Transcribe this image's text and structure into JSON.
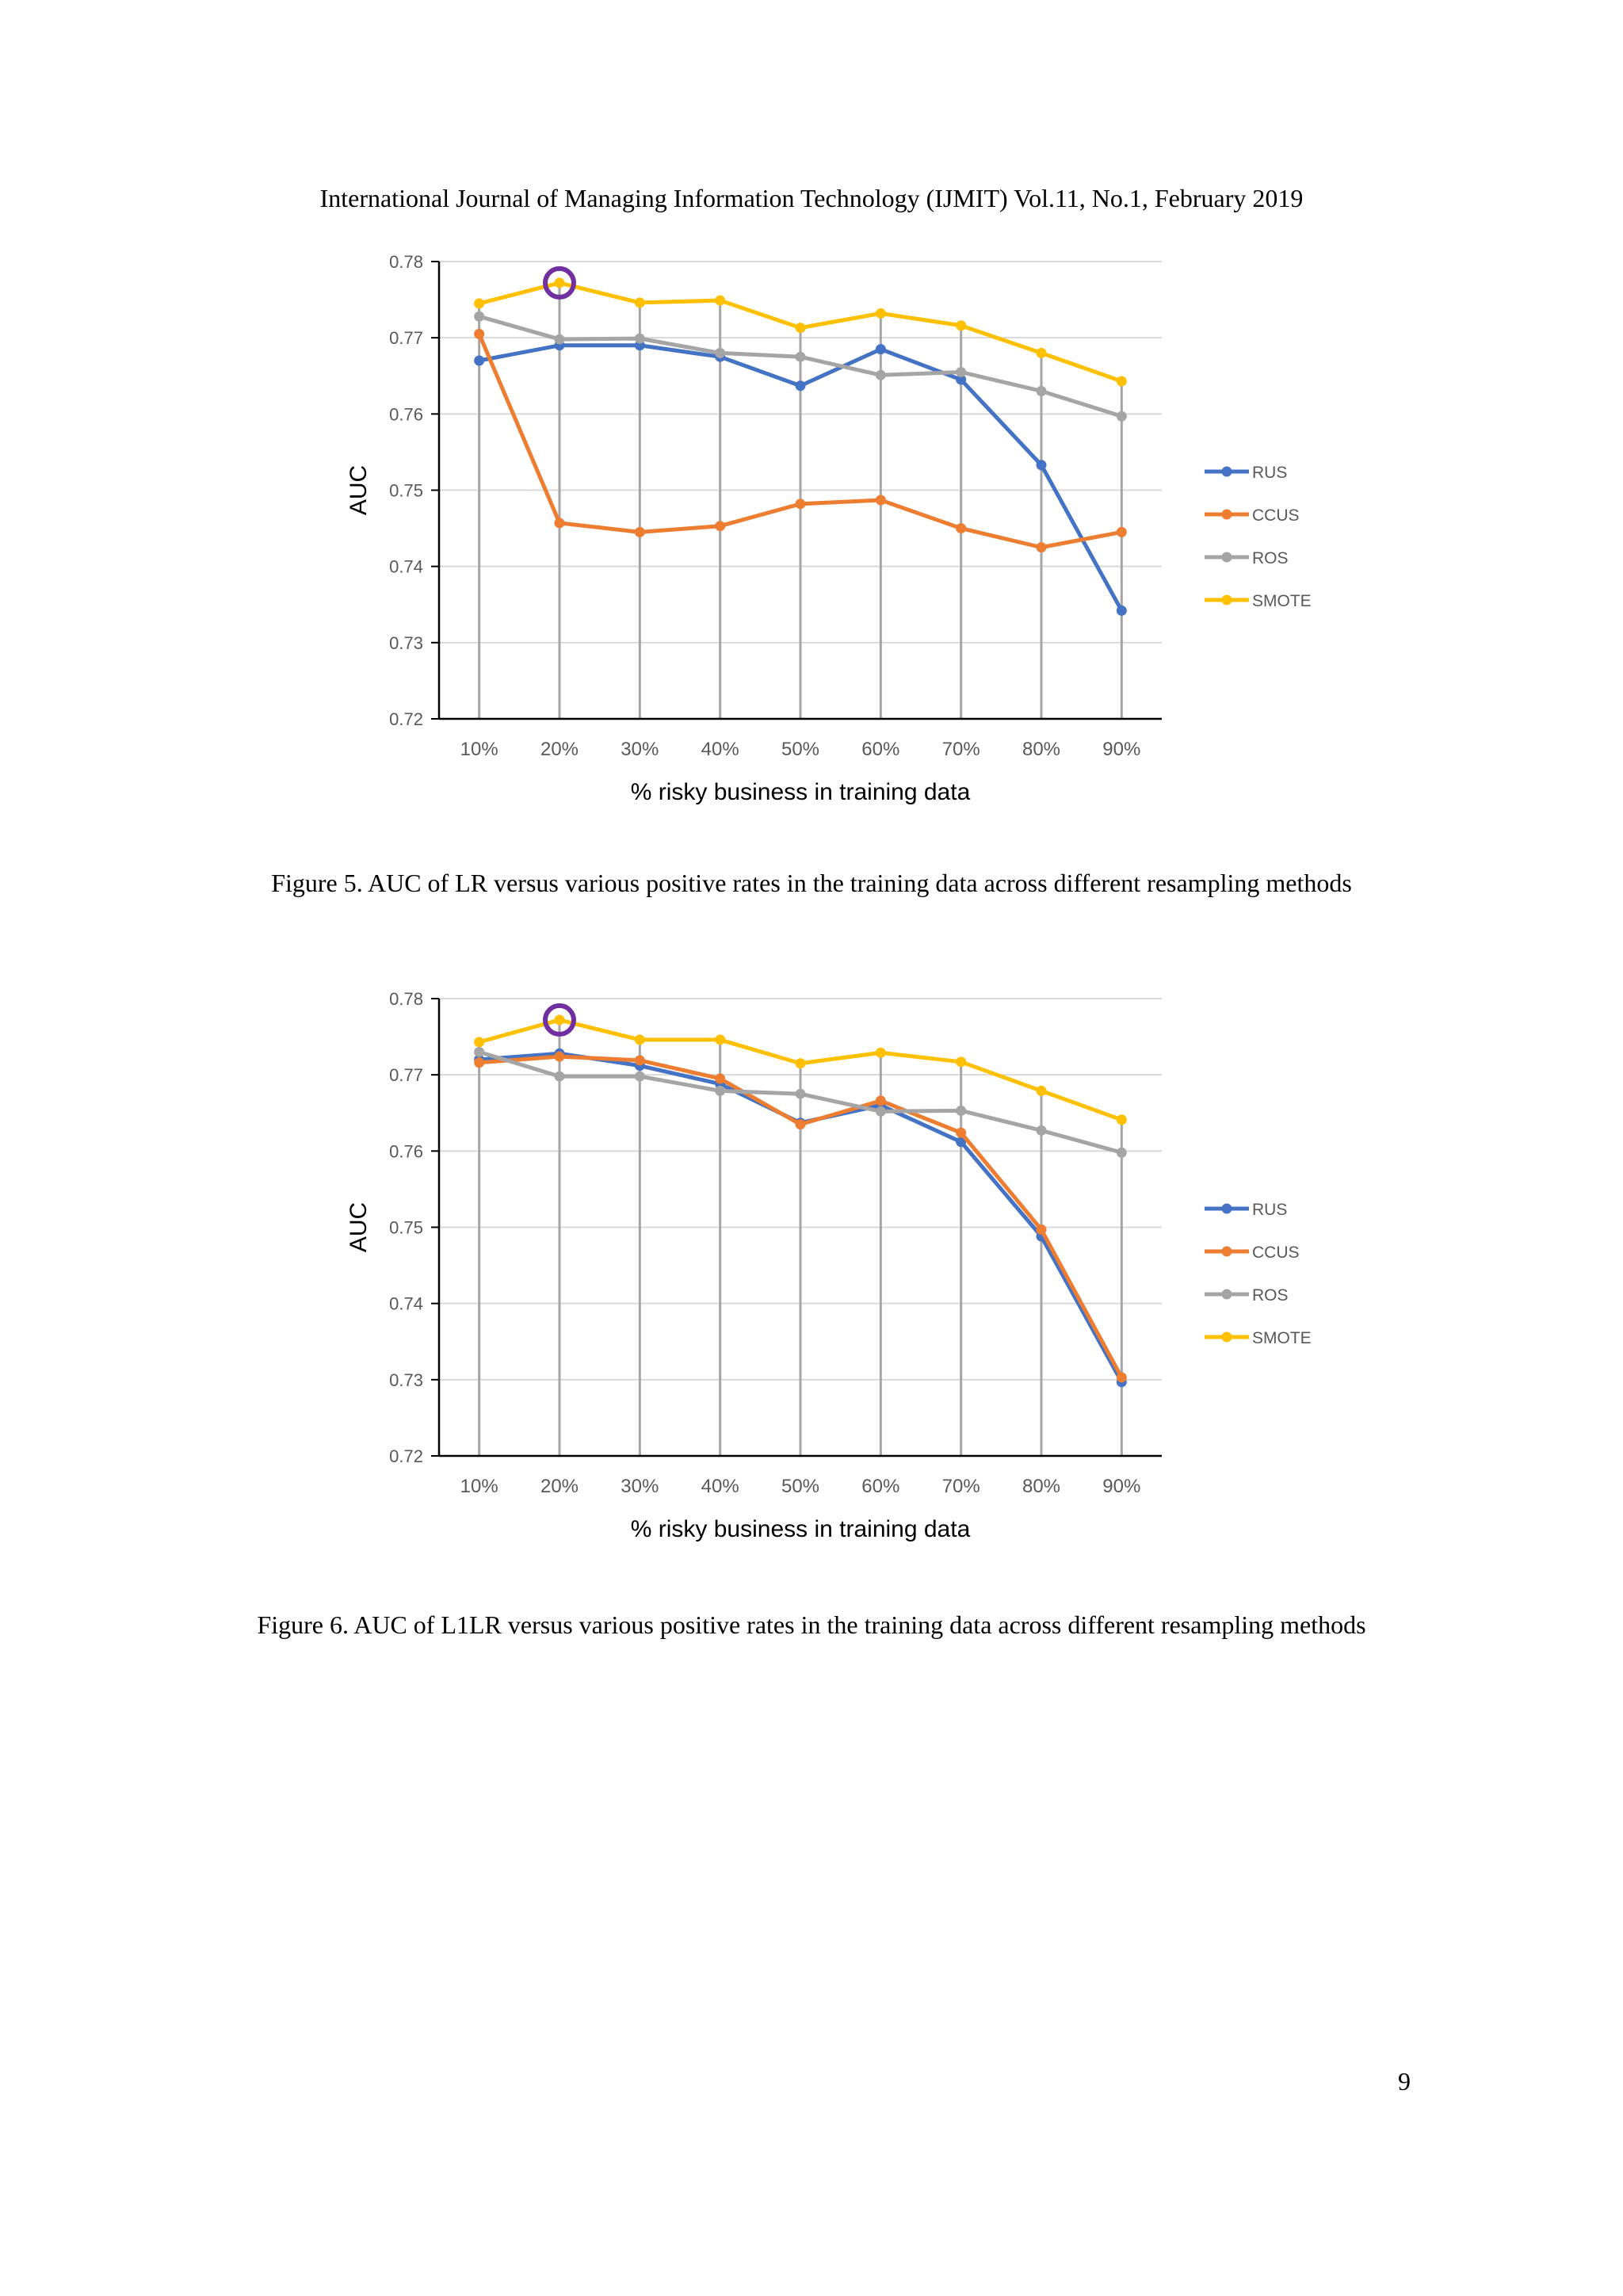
{
  "header": {
    "running_title": "International Journal of Managing Information Technology (IJMIT) Vol.11, No.1, February 2019"
  },
  "figures": [
    {
      "caption": "Figure 5.  AUC of LR versus various positive rates in the training data across different resampling methods"
    },
    {
      "caption": "Figure 6.  AUC of L1LR versus various positive rates in the training data across different resampling methods"
    }
  ],
  "footer": {
    "page_number": "9"
  },
  "chart_data": [
    {
      "type": "line",
      "title": "",
      "xlabel": "% risky business in training data",
      "ylabel": "AUC",
      "ylim": [
        0.72,
        0.78
      ],
      "yticks": [
        "0.72",
        "0.73",
        "0.74",
        "0.75",
        "0.76",
        "0.77",
        "0.78"
      ],
      "categories": [
        "10%",
        "20%",
        "30%",
        "40%",
        "50%",
        "60%",
        "70%",
        "80%",
        "90%"
      ],
      "grid": "horizontal",
      "legend": "right",
      "highlight": {
        "category_index": 1,
        "series": "SMOTE",
        "color": "#7030a0"
      },
      "series": [
        {
          "name": "RUS",
          "color": "#4472c4",
          "values": [
            0.767,
            0.769,
            0.769,
            0.7675,
            0.7637,
            0.7685,
            0.7645,
            0.7533,
            0.7342
          ]
        },
        {
          "name": "CCUS",
          "color": "#ed7d31",
          "values": [
            0.7705,
            0.7457,
            0.7445,
            0.7453,
            0.7482,
            0.7487,
            0.745,
            0.7425,
            0.7445
          ]
        },
        {
          "name": "ROS",
          "color": "#a5a5a5",
          "values": [
            0.7728,
            0.7698,
            0.7699,
            0.768,
            0.7675,
            0.7651,
            0.7655,
            0.763,
            0.7597
          ]
        },
        {
          "name": "SMOTE",
          "color": "#ffc000",
          "values": [
            0.7745,
            0.7772,
            0.7746,
            0.7749,
            0.7713,
            0.7732,
            0.7716,
            0.768,
            0.7643
          ]
        }
      ]
    },
    {
      "type": "line",
      "title": "",
      "xlabel": "% risky business in training data",
      "ylabel": "AUC",
      "ylim": [
        0.72,
        0.78
      ],
      "yticks": [
        "0.72",
        "0.73",
        "0.74",
        "0.75",
        "0.76",
        "0.77",
        "0.78"
      ],
      "categories": [
        "10%",
        "20%",
        "30%",
        "40%",
        "50%",
        "60%",
        "70%",
        "80%",
        "90%"
      ],
      "grid": "horizontal",
      "legend": "right",
      "highlight": {
        "category_index": 1,
        "series": "SMOTE",
        "color": "#7030a0"
      },
      "series": [
        {
          "name": "RUS",
          "color": "#4472c4",
          "values": [
            0.772,
            0.7728,
            0.7712,
            0.7688,
            0.7637,
            0.766,
            0.7612,
            0.7488,
            0.7297
          ]
        },
        {
          "name": "CCUS",
          "color": "#ed7d31",
          "values": [
            0.7716,
            0.7724,
            0.7719,
            0.7695,
            0.7635,
            0.7666,
            0.7624,
            0.7497,
            0.7303
          ]
        },
        {
          "name": "ROS",
          "color": "#a5a5a5",
          "values": [
            0.773,
            0.7698,
            0.7698,
            0.7679,
            0.7675,
            0.7652,
            0.7653,
            0.7627,
            0.7598
          ]
        },
        {
          "name": "SMOTE",
          "color": "#ffc000",
          "values": [
            0.7743,
            0.7772,
            0.7746,
            0.7746,
            0.7715,
            0.7729,
            0.7717,
            0.7679,
            0.7641
          ]
        }
      ]
    }
  ]
}
